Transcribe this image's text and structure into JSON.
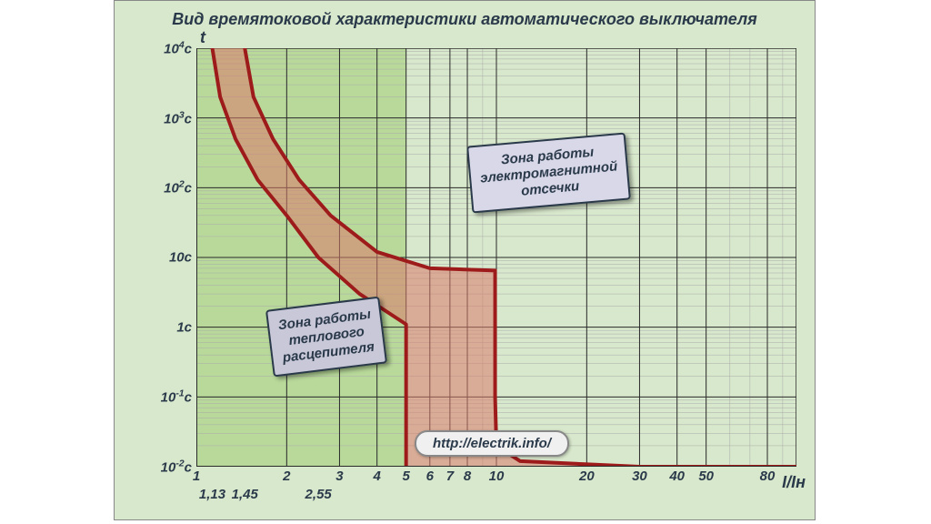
{
  "chart": {
    "title": "Вид времятоковой характеристики автоматического выключателя",
    "y_axis_title": "t",
    "x_axis_title": "I/Iн",
    "background_band": "#b8d99a",
    "background_plain": "#d8e8cc",
    "grid_major_color": "#2a2a2a",
    "grid_minor_color": "#aaa",
    "curve_stroke": "#9e1b1b",
    "curve_fill": "#d97a6a",
    "callout_thermal_bg": "#c8c8d8",
    "callout_em_bg": "#d8d8e8",
    "line_width_curve": 4,
    "x": {
      "scale": "log",
      "min": 1,
      "max": 100,
      "major_ticks": [
        1,
        2,
        3,
        4,
        5,
        6,
        7,
        8,
        10,
        20,
        30,
        40,
        50,
        80
      ],
      "tick_labels": [
        "1",
        "2",
        "3",
        "4",
        "5",
        "6",
        "7",
        "8",
        "10",
        "20",
        "30",
        "40",
        "50",
        "80"
      ],
      "extra_ticks": [
        1.13,
        1.45,
        2.55
      ],
      "extra_labels": [
        "1,13",
        "1,45",
        "2,55"
      ]
    },
    "y": {
      "scale": "log",
      "min": 0.01,
      "max": 10000,
      "ticks": [
        0.01,
        0.1,
        1,
        10,
        100,
        1000,
        10000
      ],
      "labels_html": [
        "10<sup>-2</sup>c",
        "10<sup>-1</sup>c",
        "1c",
        "10c",
        "10<sup>2</sup>c",
        "10<sup>3</sup>c",
        "10<sup>4</sup>c"
      ]
    },
    "upper_curve": [
      [
        1.45,
        10000
      ],
      [
        1.55,
        2000
      ],
      [
        1.8,
        500
      ],
      [
        2.2,
        130
      ],
      [
        2.8,
        40
      ],
      [
        4.0,
        12
      ],
      [
        6.0,
        7
      ],
      [
        9.9,
        6.5
      ],
      [
        9.9,
        0.1
      ],
      [
        10.0,
        0.02
      ],
      [
        12,
        0.012
      ],
      [
        30,
        0.01
      ],
      [
        100,
        0.01
      ]
    ],
    "lower_curve": [
      [
        1.13,
        10000
      ],
      [
        1.2,
        2000
      ],
      [
        1.35,
        500
      ],
      [
        1.6,
        130
      ],
      [
        2.0,
        40
      ],
      [
        2.55,
        10
      ],
      [
        3.5,
        3
      ],
      [
        5,
        1.1
      ],
      [
        5,
        0.008
      ],
      [
        7,
        0.006
      ],
      [
        100,
        0.005
      ]
    ],
    "thermal_zone_x": [
      1.13,
      5
    ],
    "em_zone_x": [
      5,
      10
    ]
  },
  "callouts": {
    "thermal": {
      "text": "Зона работы\nтеплового\nрасцепителя",
      "rotate": -7
    },
    "em": {
      "text": "Зона работы\nэлектромагнитной\nотсечки",
      "rotate": -5
    }
  },
  "url": "http://electrik.info/"
}
